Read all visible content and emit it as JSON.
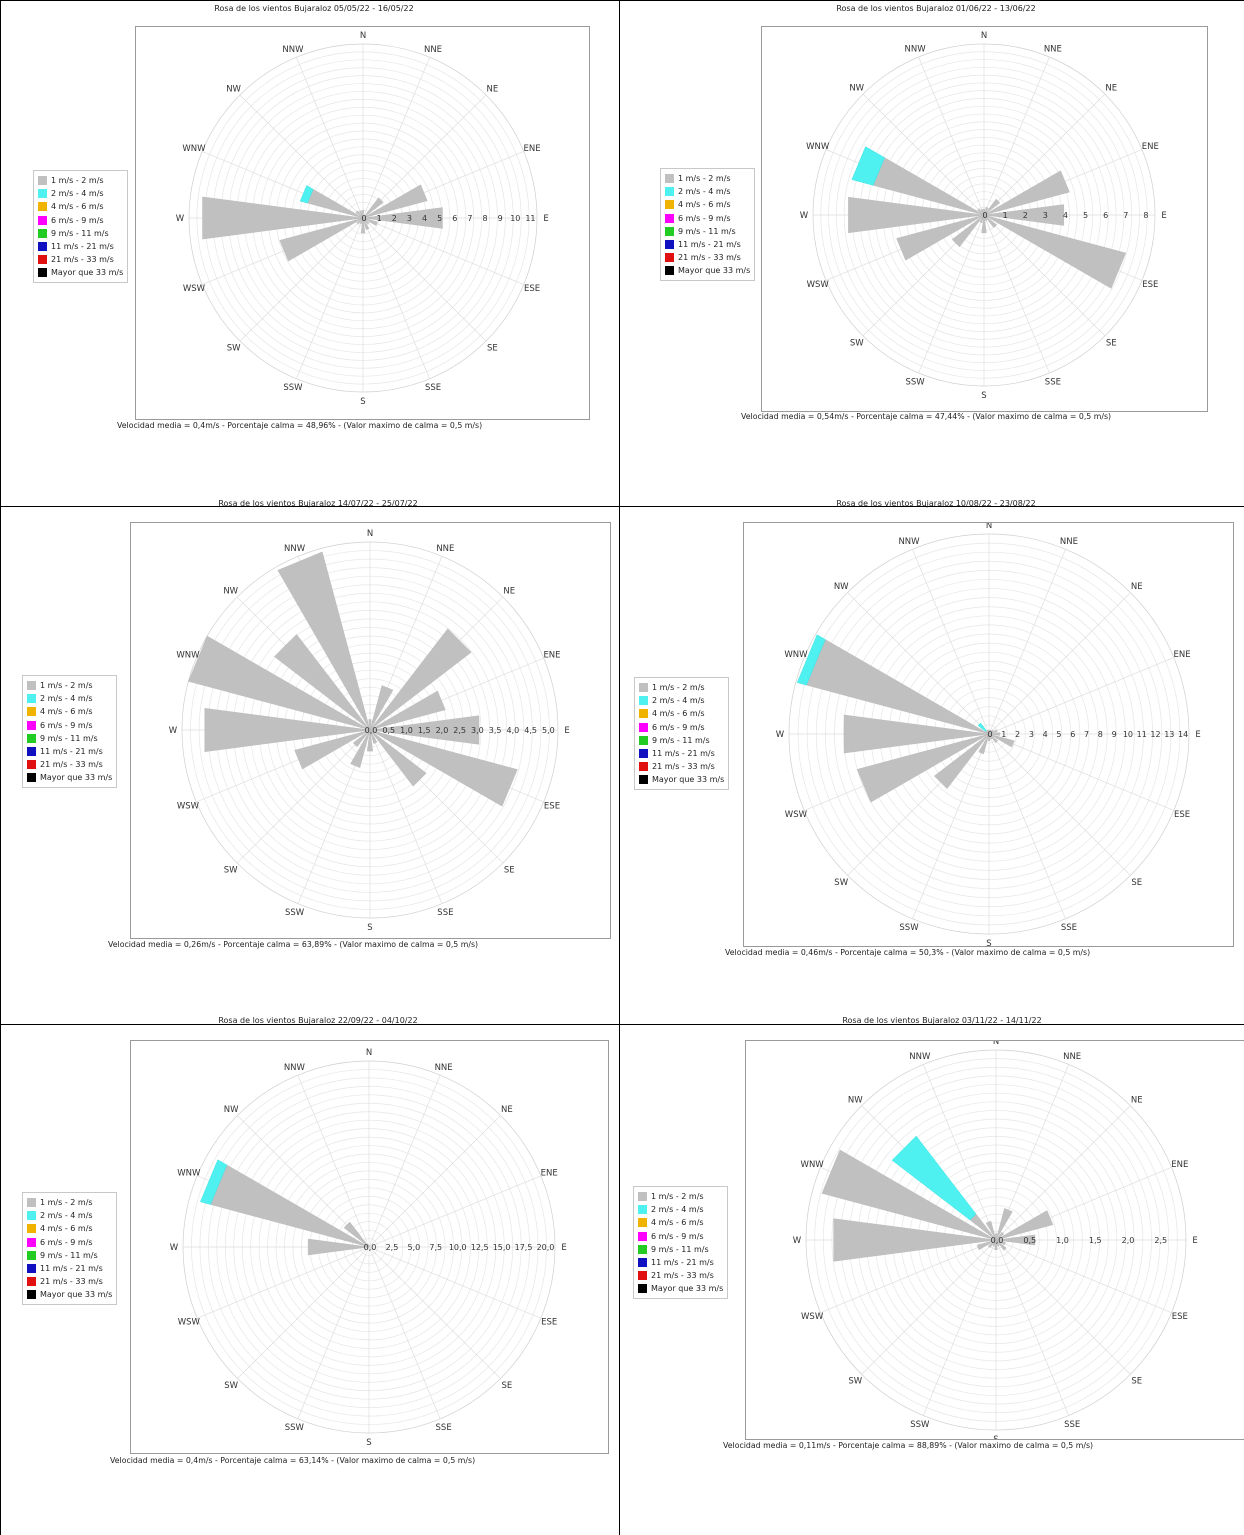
{
  "legend": [
    {
      "label": "1 m/s - 2 m/s",
      "color": "#c0c0c0"
    },
    {
      "label": "2 m/s - 4 m/s",
      "color": "#4ef0f0"
    },
    {
      "label": "4 m/s - 6 m/s",
      "color": "#f0b400"
    },
    {
      "label": "6 m/s - 9 m/s",
      "color": "#ff00ff"
    },
    {
      "label": "9 m/s - 11 m/s",
      "color": "#22cc22"
    },
    {
      "label": "11 m/s - 21 m/s",
      "color": "#1010c0"
    },
    {
      "label": "21 m/s - 33 m/s",
      "color": "#e01010"
    },
    {
      "label": "Mayor que 33 m/s",
      "color": "#000000"
    }
  ],
  "directions": [
    "N",
    "NNE",
    "NE",
    "ENE",
    "E",
    "ESE",
    "SE",
    "SSE",
    "S",
    "SSW",
    "SW",
    "WSW",
    "W",
    "WNW",
    "NW",
    "NNW"
  ],
  "chart_data": [
    {
      "type": "polar-bar",
      "title": "Rosa de los vientos Bujaraloz 05/05/22 - 16/05/22",
      "rmax": 11.5,
      "ticks": [
        "0",
        "1",
        "2",
        "3",
        "4",
        "5",
        "6",
        "7",
        "8",
        "9",
        "10",
        "11"
      ],
      "tick_values": [
        0,
        1,
        2,
        3,
        4,
        5,
        6,
        7,
        8,
        9,
        10,
        11
      ],
      "gray": [
        0.5,
        0,
        1.7,
        4.4,
        5.3,
        1.0,
        0.5,
        0.8,
        1.0,
        0.4,
        0.5,
        5.7,
        10.7,
        3.8,
        0.6,
        0.5
      ],
      "cyan": [
        0,
        0,
        0,
        0,
        0,
        0,
        0,
        0,
        0,
        0,
        0,
        0,
        0,
        0.5,
        0,
        0
      ],
      "footer": "Velocidad media = 0,4m/s - Porcentaje calma = 48,96% - (Valor maximo de calma = 0,5 m/s)"
    },
    {
      "type": "polar-bar",
      "title": "Rosa de los vientos Bujaraloz 01/06/22 - 13/06/22",
      "rmax": 8.5,
      "ticks": [
        "0",
        "1",
        "2",
        "3",
        "4",
        "5",
        "6",
        "7",
        "8"
      ],
      "tick_values": [
        0,
        1,
        2,
        3,
        4,
        5,
        6,
        7,
        8
      ],
      "gray": [
        0.3,
        0.4,
        1.0,
        4.4,
        4.0,
        7.3,
        0.8,
        0.3,
        0.9,
        0.4,
        2.0,
        4.5,
        6.8,
        5.7,
        0.4,
        0.3
      ],
      "cyan": [
        0,
        0,
        0,
        0,
        0,
        0,
        0,
        0,
        0,
        0,
        0,
        0,
        0,
        1.1,
        0,
        0
      ],
      "footer": "Velocidad media = 0,54m/s - Porcentaje calma = 47,44% - (Valor maximo de calma = 0,5 m/s)"
    },
    {
      "type": "polar-bar",
      "title": "Rosa de los vientos Bujaraloz 14/07/22 - 25/07/22",
      "rmax": 5.3,
      "ticks": [
        "0,0",
        "0,5",
        "1,0",
        "1,5",
        "2,0",
        "2,5",
        "3,0",
        "3,5",
        "4,0",
        "4,5",
        "5,0"
      ],
      "tick_values": [
        0,
        0.5,
        1,
        1.5,
        2,
        2.5,
        3,
        3.5,
        4,
        4.5,
        5
      ],
      "gray": [
        0.3,
        1.3,
        3.6,
        2.2,
        3.1,
        4.3,
        2.0,
        0.4,
        0.6,
        1.1,
        0.6,
        2.2,
        4.7,
        5.3,
        3.4,
        5.2
      ],
      "cyan": [
        0,
        0,
        0,
        0,
        0,
        0,
        0,
        0,
        0,
        0,
        0,
        0,
        0,
        0,
        0,
        0
      ],
      "footer": "Velocidad media = 0,26m/s - Porcentaje calma = 63,89% - (Valor maximo de calma = 0,5 m/s)"
    },
    {
      "type": "polar-bar",
      "title": "Rosa de los vientos Bujaraloz 10/08/22 - 23/08/22",
      "rmax": 14.5,
      "ticks": [
        "0",
        "1",
        "2",
        "3",
        "4",
        "5",
        "6",
        "7",
        "8",
        "9",
        "10",
        "11",
        "12",
        "13",
        "14"
      ],
      "tick_values": [
        0,
        1,
        2,
        3,
        4,
        5,
        6,
        7,
        8,
        9,
        10,
        11,
        12,
        13,
        14
      ],
      "gray": [
        0.3,
        0.3,
        0.4,
        0.6,
        0.8,
        1.9,
        0.8,
        0.4,
        0.5,
        1.5,
        5.0,
        9.9,
        10.6,
        13.7,
        0.3,
        0.3
      ],
      "cyan": [
        0,
        0,
        0,
        0,
        0,
        0,
        0,
        0,
        0,
        0,
        0,
        0,
        0,
        0.7,
        0.7,
        0
      ],
      "footer": "Velocidad media = 0,46m/s - Porcentaje calma = 50,3% - (Valor maximo de calma = 0,5 m/s)"
    },
    {
      "type": "polar-bar",
      "title": "Rosa de los vientos Bujaraloz 22/09/22 - 04/10/22",
      "rmax": 21.2,
      "ticks": [
        "0,0",
        "2,5",
        "5,0",
        "7,5",
        "10,0",
        "12,5",
        "15,0",
        "17,5",
        "20,0"
      ],
      "tick_values": [
        0,
        2.5,
        5,
        7.5,
        10,
        12.5,
        15,
        17.5,
        20
      ],
      "gray": [
        0.2,
        0,
        0,
        0,
        0,
        0,
        0,
        0,
        0,
        0,
        0,
        0,
        7.0,
        18.7,
        3.6,
        0.3
      ],
      "cyan": [
        0,
        0,
        0,
        0,
        0,
        0,
        0,
        0,
        0,
        0,
        0,
        0,
        0,
        1.2,
        0,
        0
      ],
      "footer": "Velocidad media = 0,4m/s - Porcentaje calma = 63,14% - (Valor maximo de calma = 0,5 m/s)"
    },
    {
      "type": "polar-bar",
      "title": "Rosa de los vientos Bujaraloz 03/11/22 - 14/11/22",
      "rmax": 2.9,
      "ticks": [
        "0,0",
        "0,5",
        "1,0",
        "1,5",
        "2,0",
        "2,5"
      ],
      "tick_values": [
        0,
        0.5,
        1,
        1.5,
        2,
        2.5
      ],
      "gray": [
        0.1,
        0.5,
        0.15,
        0.9,
        0.6,
        0.15,
        0.2,
        0.1,
        0.15,
        0.1,
        0.15,
        0.3,
        2.5,
        2.75,
        0.5,
        0.3
      ],
      "cyan": [
        0,
        0,
        0,
        0,
        0,
        0,
        0,
        0,
        0,
        0,
        0,
        0,
        0,
        0,
        1.5,
        0
      ],
      "footer": "Velocidad media = 0,11m/s - Porcentaje calma = 88,89% - (Valor maximo de calma = 0,5 m/s)"
    }
  ]
}
